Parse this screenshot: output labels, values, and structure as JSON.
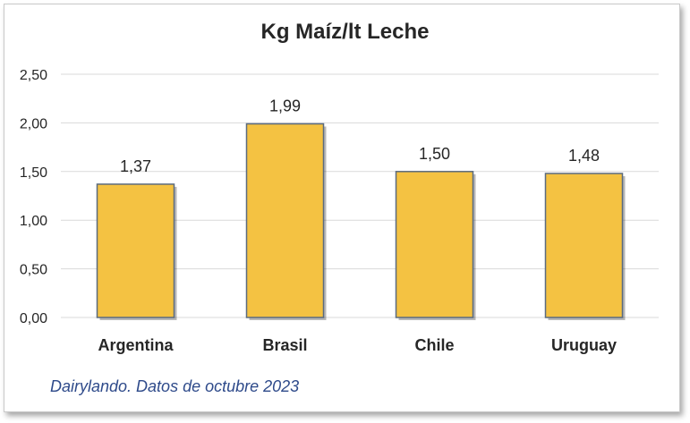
{
  "chart_data": {
    "type": "bar",
    "title": "Kg Maíz/lt Leche",
    "categories": [
      "Argentina",
      "Brasil",
      "Chile",
      "Uruguay"
    ],
    "values": [
      1.37,
      1.99,
      1.5,
      1.48
    ],
    "value_labels": [
      "1,37",
      "1,99",
      "1,50",
      "1,48"
    ],
    "yticks": [
      0,
      0.5,
      1.0,
      1.5,
      2.0,
      2.5
    ],
    "ytick_labels": [
      "0,00",
      "0,50",
      "1,00",
      "1,50",
      "2,00",
      "2,50"
    ],
    "ylim": [
      0,
      2.5
    ],
    "xlabel": "",
    "ylabel": "",
    "grid": true,
    "bar_color": "#F4C242",
    "bar_edge": "#5b6b7f",
    "legend": "none",
    "source_note": "Dairylando. Datos de octubre 2023"
  }
}
